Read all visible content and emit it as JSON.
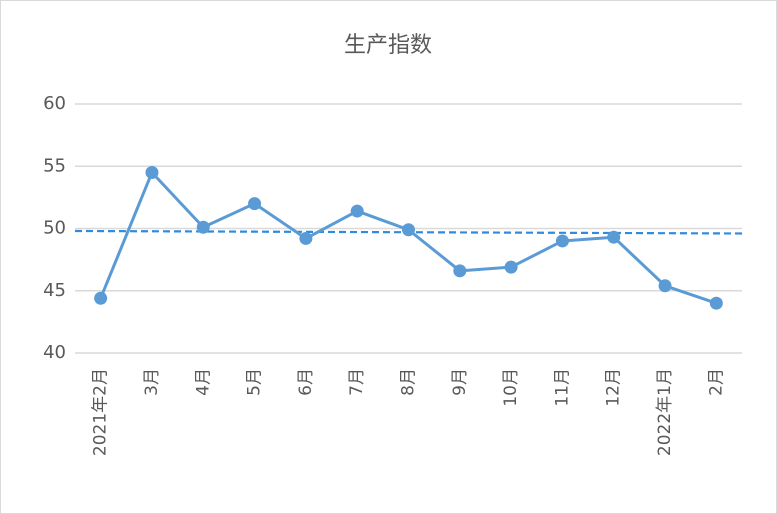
{
  "chart_data": {
    "type": "line",
    "title": "生产指数",
    "categories": [
      "2021年2月",
      "3月",
      "4月",
      "5月",
      "6月",
      "7月",
      "8月",
      "9月",
      "10月",
      "11月",
      "12月",
      "2022年1月",
      "2月"
    ],
    "series": [
      {
        "name": "生产指数",
        "color": "#5b9bd5",
        "values": [
          44.4,
          54.5,
          50.1,
          52.0,
          49.2,
          51.4,
          49.9,
          46.6,
          46.9,
          49.0,
          49.3,
          45.4,
          44.0
        ]
      }
    ],
    "trendline": {
      "start": 49.8,
      "end": 49.6,
      "color": "#2e8be0"
    },
    "ylim": [
      40,
      60
    ],
    "yticks": [
      40,
      45,
      50,
      55,
      60
    ],
    "grid": true,
    "legend": false
  }
}
